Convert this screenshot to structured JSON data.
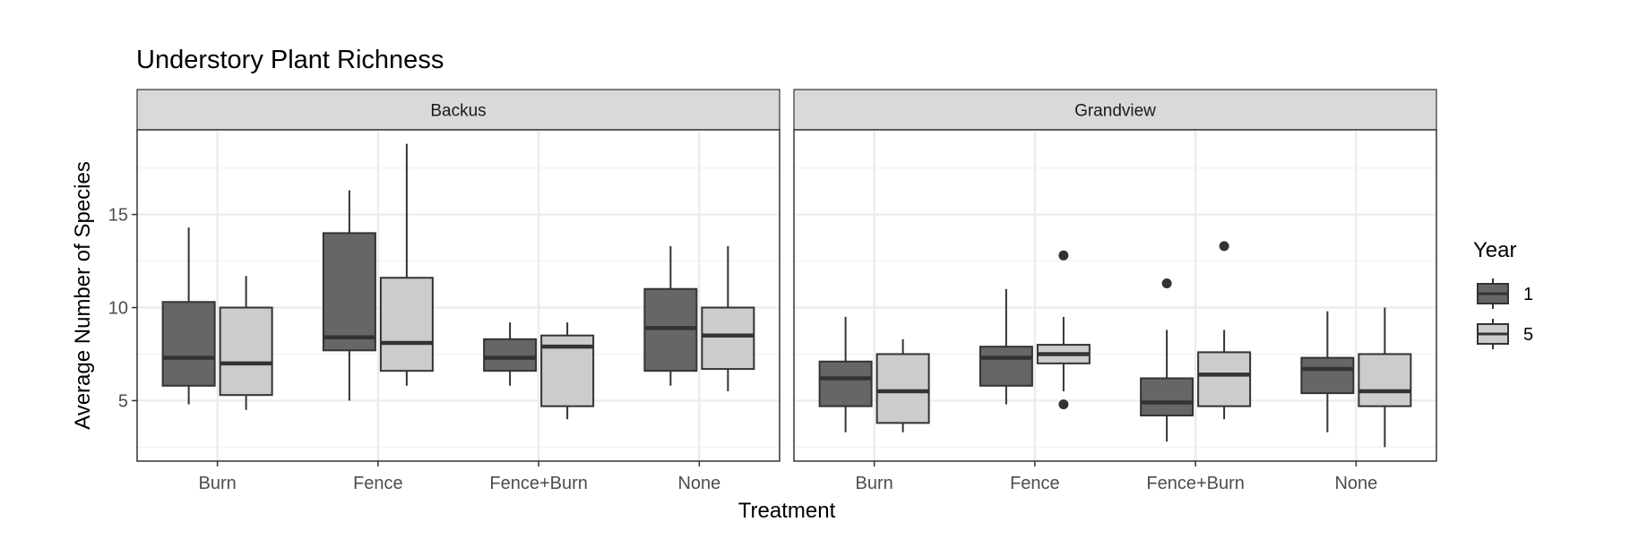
{
  "chart_data": {
    "type": "boxplot",
    "title": "Understory Plant Richness",
    "xlabel": "Treatment",
    "ylabel": "Average Number of Species",
    "ylim": [
      1.75,
      19.55
    ],
    "yticks": [
      5,
      10,
      15
    ],
    "grid": true,
    "legend": {
      "title": "Year",
      "placement": "right",
      "entries": [
        {
          "name": "1",
          "color": "#666666"
        },
        {
          "name": "5",
          "color": "#cccccc"
        }
      ]
    },
    "categories": [
      "Burn",
      "Fence",
      "Fence+Burn",
      "None"
    ],
    "panels": [
      {
        "name": "Backus",
        "groups": [
          {
            "category": "Burn",
            "year": "1",
            "lower": 4.8,
            "q1": 5.8,
            "median": 7.3,
            "q3": 10.3,
            "upper": 14.3,
            "outliers": []
          },
          {
            "category": "Burn",
            "year": "5",
            "lower": 4.5,
            "q1": 5.3,
            "median": 7.0,
            "q3": 10.0,
            "upper": 11.7,
            "outliers": []
          },
          {
            "category": "Fence",
            "year": "1",
            "lower": 5.0,
            "q1": 7.7,
            "median": 8.4,
            "q3": 14.0,
            "upper": 16.3,
            "outliers": []
          },
          {
            "category": "Fence",
            "year": "5",
            "lower": 5.8,
            "q1": 6.6,
            "median": 8.1,
            "q3": 11.6,
            "upper": 18.8,
            "outliers": []
          },
          {
            "category": "Fence+Burn",
            "year": "1",
            "lower": 5.8,
            "q1": 6.6,
            "median": 7.3,
            "q3": 8.3,
            "upper": 9.2,
            "outliers": []
          },
          {
            "category": "Fence+Burn",
            "year": "5",
            "lower": 4.0,
            "q1": 4.7,
            "median": 7.9,
            "q3": 8.5,
            "upper": 9.2,
            "outliers": []
          },
          {
            "category": "None",
            "year": "1",
            "lower": 5.8,
            "q1": 6.6,
            "median": 8.9,
            "q3": 11.0,
            "upper": 13.3,
            "outliers": []
          },
          {
            "category": "None",
            "year": "5",
            "lower": 5.5,
            "q1": 6.7,
            "median": 8.5,
            "q3": 10.0,
            "upper": 13.3,
            "outliers": []
          }
        ]
      },
      {
        "name": "Grandview",
        "groups": [
          {
            "category": "Burn",
            "year": "1",
            "lower": 3.3,
            "q1": 4.7,
            "median": 6.2,
            "q3": 7.1,
            "upper": 9.5,
            "outliers": []
          },
          {
            "category": "Burn",
            "year": "5",
            "lower": 3.3,
            "q1": 3.8,
            "median": 5.5,
            "q3": 7.5,
            "upper": 8.3,
            "outliers": []
          },
          {
            "category": "Fence",
            "year": "1",
            "lower": 4.8,
            "q1": 5.8,
            "median": 7.3,
            "q3": 7.9,
            "upper": 11.0,
            "outliers": []
          },
          {
            "category": "Fence",
            "year": "5",
            "lower": 5.5,
            "q1": 7.0,
            "median": 7.5,
            "q3": 8.0,
            "upper": 9.5,
            "outliers": [
              12.8,
              4.8
            ]
          },
          {
            "category": "Fence+Burn",
            "year": "1",
            "lower": 2.8,
            "q1": 4.2,
            "median": 4.9,
            "q3": 6.2,
            "upper": 8.8,
            "outliers": [
              11.3
            ]
          },
          {
            "category": "Fence+Burn",
            "year": "5",
            "lower": 4.0,
            "q1": 4.7,
            "median": 6.4,
            "q3": 7.6,
            "upper": 8.8,
            "outliers": [
              13.3
            ]
          },
          {
            "category": "None",
            "year": "1",
            "lower": 3.3,
            "q1": 5.4,
            "median": 6.7,
            "q3": 7.3,
            "upper": 9.8,
            "outliers": []
          },
          {
            "category": "None",
            "year": "5",
            "lower": 2.5,
            "q1": 4.7,
            "median": 5.5,
            "q3": 7.5,
            "upper": 10.0,
            "outliers": []
          }
        ]
      }
    ]
  }
}
